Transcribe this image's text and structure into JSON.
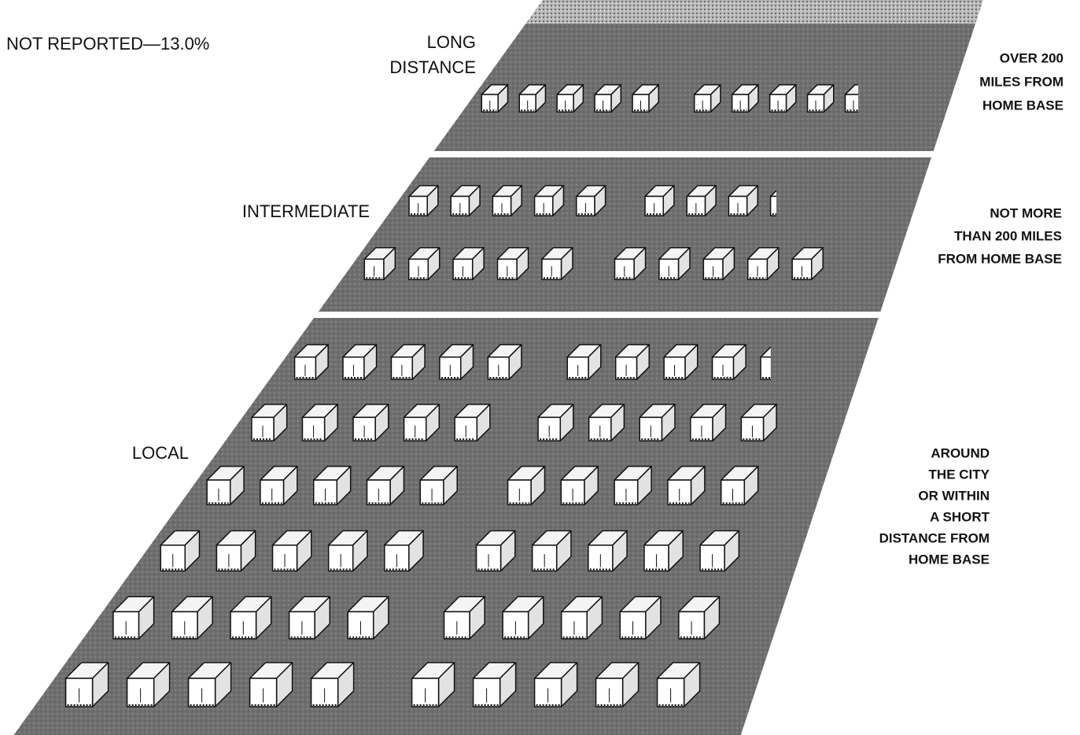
{
  "chart_data": {
    "type": "pictograph",
    "note": "NOT REPORTED—13.0%",
    "categories": [
      [
        "LONG",
        "DISTANCE"
      ],
      [
        "INTERMEDIATE"
      ],
      [
        "LOCAL"
      ]
    ],
    "descriptions": [
      [
        "OVER 200",
        "MILES FROM",
        "HOME BASE"
      ],
      [
        "NOT MORE",
        "THAN 200 MILES",
        "FROM HOME BASE"
      ],
      [
        "AROUND",
        "THE CITY",
        "OR WITHIN",
        "A SHORT",
        "DISTANCE FROM",
        "HOME BASE"
      ]
    ],
    "values": [
      9.5,
      18.2,
      59.3
    ],
    "color": "#6f6f6f"
  }
}
